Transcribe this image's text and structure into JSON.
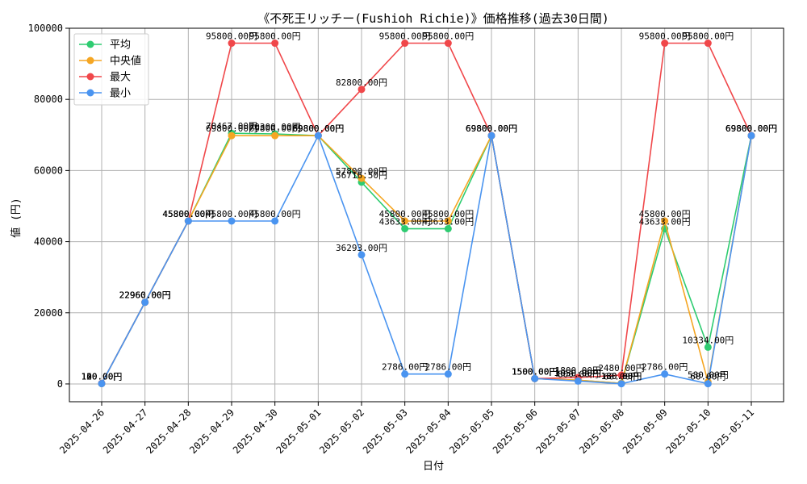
{
  "chart_data": {
    "type": "line",
    "title": "《不死王リッチー(Fushioh Richie)》価格推移(過去30日間)",
    "xlabel": "日付",
    "ylabel": "値 (円)",
    "categories": [
      "2025-04-26",
      "2025-04-27",
      "2025-04-28",
      "2025-04-29",
      "2025-04-30",
      "2025-05-01",
      "2025-05-02",
      "2025-05-03",
      "2025-05-04",
      "2025-05-05",
      "2025-05-06",
      "2025-05-07",
      "2025-05-08",
      "2025-05-09",
      "2025-05-10",
      "2025-05-11"
    ],
    "ylim": [
      -5000,
      100000
    ],
    "yticks": [
      0,
      20000,
      40000,
      60000,
      80000,
      100000
    ],
    "grid": true,
    "legend_position": "top-left",
    "value_suffix": "円",
    "series": [
      {
        "name": "平均",
        "color": "#2ecc71",
        "values": [
          120,
          22960,
          45800,
          70467,
          70300,
          69800,
          56716.5,
          43633,
          43633,
          69800,
          1500,
          1050,
          180,
          43633,
          10334,
          69800
        ]
      },
      {
        "name": "中央値",
        "color": "#f5a623",
        "values": [
          120,
          22960,
          45800,
          69800,
          69800,
          69800,
          57800,
          45800,
          45800,
          69800,
          1500,
          1050,
          180,
          45800,
          580,
          69800
        ]
      },
      {
        "name": "最大",
        "color": "#f0474a",
        "values": [
          140,
          22960,
          45800,
          95800,
          95800,
          69800,
          82800,
          95800,
          95800,
          69800,
          1500,
          1800,
          2480,
          95800,
          95800,
          69800
        ]
      },
      {
        "name": "最小",
        "color": "#4a94f0",
        "values": [
          100,
          22960,
          45800,
          45800,
          45800,
          69800,
          36293,
          2786,
          2786,
          69800,
          1500,
          800,
          60,
          2786,
          60,
          69800
        ]
      }
    ]
  }
}
